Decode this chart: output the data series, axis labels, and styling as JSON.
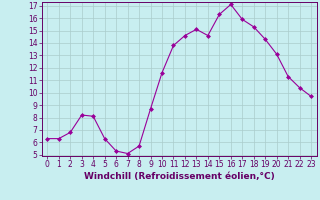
{
  "x": [
    0,
    1,
    2,
    3,
    4,
    5,
    6,
    7,
    8,
    9,
    10,
    11,
    12,
    13,
    14,
    15,
    16,
    17,
    18,
    19,
    20,
    21,
    22,
    23
  ],
  "y": [
    6.3,
    6.3,
    6.8,
    8.2,
    8.1,
    6.3,
    5.3,
    5.1,
    5.7,
    8.7,
    11.6,
    13.8,
    14.6,
    15.1,
    14.6,
    16.3,
    17.1,
    15.9,
    15.3,
    14.3,
    13.1,
    11.3,
    10.4,
    9.7
  ],
  "line_color": "#990099",
  "marker": "D",
  "marker_size": 2,
  "bg_color": "#c8eef0",
  "grid_color": "#aacccc",
  "xlabel": "Windchill (Refroidissement éolien,°C)",
  "xlim": [
    -0.5,
    23.5
  ],
  "ylim": [
    5,
    17
  ],
  "yticks": [
    5,
    6,
    7,
    8,
    9,
    10,
    11,
    12,
    13,
    14,
    15,
    16,
    17
  ],
  "xticks": [
    0,
    1,
    2,
    3,
    4,
    5,
    6,
    7,
    8,
    9,
    10,
    11,
    12,
    13,
    14,
    15,
    16,
    17,
    18,
    19,
    20,
    21,
    22,
    23
  ],
  "tick_fontsize": 5.5,
  "xlabel_fontsize": 6.5,
  "axis_label_color": "#660066",
  "tick_color": "#660066",
  "spine_color": "#660066"
}
